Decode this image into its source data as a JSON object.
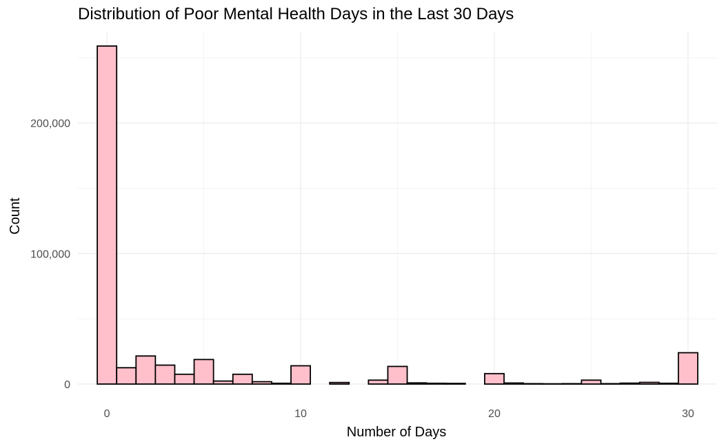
{
  "chart_data": {
    "type": "bar",
    "title": "Distribution of Poor Mental Health Days in the Last 30 Days",
    "xlabel": "Number of Days",
    "ylabel": "Count",
    "xlim": [
      -1.5,
      31.5
    ],
    "ylim": [
      0,
      270000
    ],
    "x_ticks": [
      0,
      10,
      20,
      30
    ],
    "x_tick_labels": [
      "0",
      "10",
      "20",
      "30"
    ],
    "y_ticks": [
      0,
      100000,
      200000
    ],
    "y_tick_labels": [
      "0",
      "100,000",
      "200,000"
    ],
    "grid": true,
    "bar_fill": "#ffc0cb",
    "bar_outline": "#000000",
    "bins": [
      {
        "x": 0,
        "count": 259000
      },
      {
        "x": 1,
        "count": 12500
      },
      {
        "x": 2,
        "count": 21500
      },
      {
        "x": 3,
        "count": 14500
      },
      {
        "x": 4,
        "count": 7500
      },
      {
        "x": 5,
        "count": 18800
      },
      {
        "x": 6,
        "count": 2300
      },
      {
        "x": 7,
        "count": 7500
      },
      {
        "x": 8,
        "count": 1800
      },
      {
        "x": 9,
        "count": 600
      },
      {
        "x": 10,
        "count": 14000
      },
      {
        "x": 11,
        "count": 0
      },
      {
        "x": 12,
        "count": 1200
      },
      {
        "x": 13,
        "count": 0
      },
      {
        "x": 14,
        "count": 3000
      },
      {
        "x": 15,
        "count": 13500
      },
      {
        "x": 16,
        "count": 900
      },
      {
        "x": 17,
        "count": 600
      },
      {
        "x": 18,
        "count": 500
      },
      {
        "x": 19,
        "count": 0
      },
      {
        "x": 20,
        "count": 8000
      },
      {
        "x": 21,
        "count": 800
      },
      {
        "x": 22,
        "count": 300
      },
      {
        "x": 23,
        "count": 200
      },
      {
        "x": 24,
        "count": 300
      },
      {
        "x": 25,
        "count": 3000
      },
      {
        "x": 26,
        "count": 300
      },
      {
        "x": 27,
        "count": 700
      },
      {
        "x": 28,
        "count": 1300
      },
      {
        "x": 29,
        "count": 600
      },
      {
        "x": 30,
        "count": 24000
      }
    ]
  }
}
